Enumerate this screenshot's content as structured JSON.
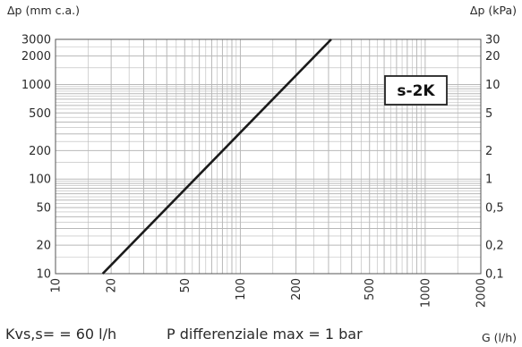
{
  "chart_data": {
    "type": "line",
    "x_scale": "log",
    "y_scale": "log",
    "xlabel": "G (l/h)",
    "ylabel_left": "Δp (mm c.a.)",
    "ylabel_right": "Δp (kPa)",
    "xlim": [
      10,
      2000
    ],
    "ylim": [
      10,
      3000
    ],
    "grid": true,
    "x_ticks": [
      {
        "value": 10,
        "label": "10"
      },
      {
        "value": 20,
        "label": "20"
      },
      {
        "value": 50,
        "label": "50"
      },
      {
        "value": 100,
        "label": "100"
      },
      {
        "value": 200,
        "label": "200"
      },
      {
        "value": 500,
        "label": "500"
      },
      {
        "value": 1000,
        "label": "1000"
      },
      {
        "value": 2000,
        "label": "2000"
      }
    ],
    "y_ticks_left": [
      {
        "value": 3000,
        "label": "3000"
      },
      {
        "value": 2000,
        "label": "2000"
      },
      {
        "value": 1000,
        "label": "1000"
      },
      {
        "value": 500,
        "label": "500"
      },
      {
        "value": 200,
        "label": "200"
      },
      {
        "value": 100,
        "label": "100"
      },
      {
        "value": 50,
        "label": "50"
      },
      {
        "value": 20,
        "label": "20"
      },
      {
        "value": 10,
        "label": "10"
      }
    ],
    "y_ticks_right": [
      {
        "value": 3000,
        "label": "30"
      },
      {
        "value": 2000,
        "label": "20"
      },
      {
        "value": 1000,
        "label": "10"
      },
      {
        "value": 500,
        "label": "5"
      },
      {
        "value": 200,
        "label": "2"
      },
      {
        "value": 100,
        "label": "1"
      },
      {
        "value": 50,
        "label": "0,5"
      },
      {
        "value": 20,
        "label": "0,2"
      },
      {
        "value": 10,
        "label": "0,1"
      }
    ],
    "series": [
      {
        "points": [
          {
            "x": 18,
            "y": 10
          },
          {
            "x": 310,
            "y": 3000
          }
        ]
      }
    ],
    "annotation": "s-2K",
    "line_color": "#1a1a1a",
    "grid_color": "#b8b8b8"
  },
  "footer": {
    "kv_text": "Kvs,s= = 60 l/h",
    "pdiff_text": "P differenziale max = 1 bar"
  }
}
